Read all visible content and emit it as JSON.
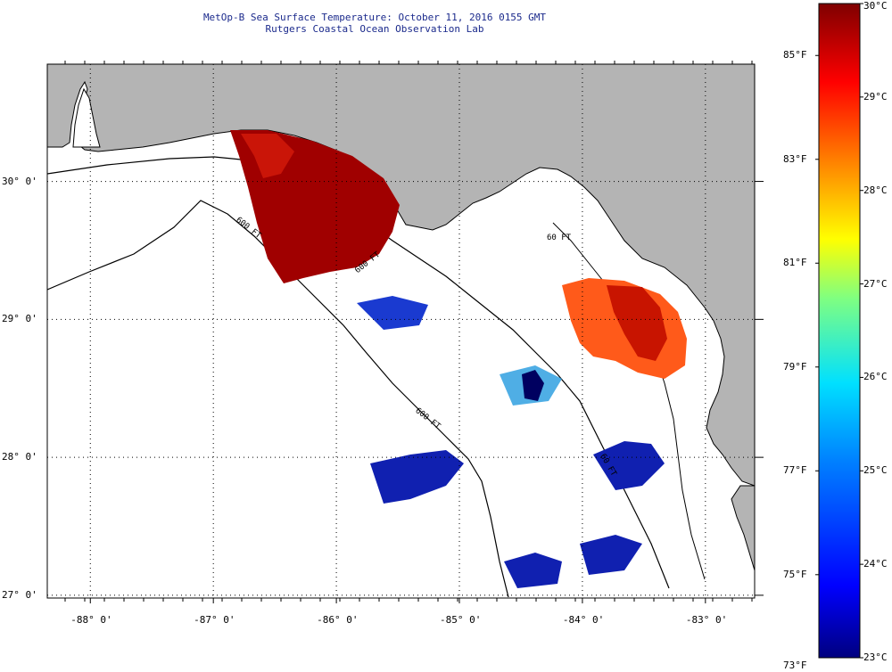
{
  "title": {
    "line1": "MetOp-B Sea Surface Temperature:  October 11, 2016 0155 GMT",
    "line2": "Rutgers Coastal Ocean Observation Lab"
  },
  "map": {
    "lon_range": [
      -88.35,
      -82.6
    ],
    "lat_range": [
      26.98,
      30.85
    ],
    "lon_ticks": [
      {
        "value": -88,
        "label": "-88° 0'"
      },
      {
        "value": -87,
        "label": "-87° 0'"
      },
      {
        "value": -86,
        "label": "-86° 0'"
      },
      {
        "value": -85,
        "label": "-85° 0'"
      },
      {
        "value": -84,
        "label": "-84° 0'"
      },
      {
        "value": -83,
        "label": "-83° 0'"
      }
    ],
    "lat_ticks": [
      {
        "value": 30,
        "label": "30° 0'"
      },
      {
        "value": 29,
        "label": "29° 0'"
      },
      {
        "value": 28,
        "label": "28° 0'"
      },
      {
        "value": 27,
        "label": "27° 0'"
      }
    ],
    "contour_labels": [
      "600 FT",
      "600 FT",
      "600 FT",
      "60 FT",
      "60 FT"
    ],
    "grid": "dotted",
    "land_color": "#b4b4b4",
    "ocean_color": "#ffffff"
  },
  "colorbar": {
    "celsius": [
      {
        "value": 30,
        "label": "30°C"
      },
      {
        "value": 29,
        "label": "29°C"
      },
      {
        "value": 28,
        "label": "28°C"
      },
      {
        "value": 27,
        "label": "27°C"
      },
      {
        "value": 26,
        "label": "26°C"
      },
      {
        "value": 25,
        "label": "25°C"
      },
      {
        "value": 24,
        "label": "24°C"
      },
      {
        "value": 23,
        "label": "23°C"
      }
    ],
    "fahrenheit": [
      {
        "value": 85,
        "label": "85°F"
      },
      {
        "value": 83,
        "label": "83°F"
      },
      {
        "value": 81,
        "label": "81°F"
      },
      {
        "value": 79,
        "label": "79°F"
      },
      {
        "value": 77,
        "label": "77°F"
      },
      {
        "value": 75,
        "label": "75°F"
      },
      {
        "value": 73,
        "label": "73°F"
      }
    ],
    "range_c": [
      23,
      30
    ],
    "colors": [
      "#00007f",
      "#0000ff",
      "#0080ff",
      "#00ffff",
      "#80ff80",
      "#ffff00",
      "#ff8000",
      "#ff0000",
      "#7f0000"
    ]
  }
}
